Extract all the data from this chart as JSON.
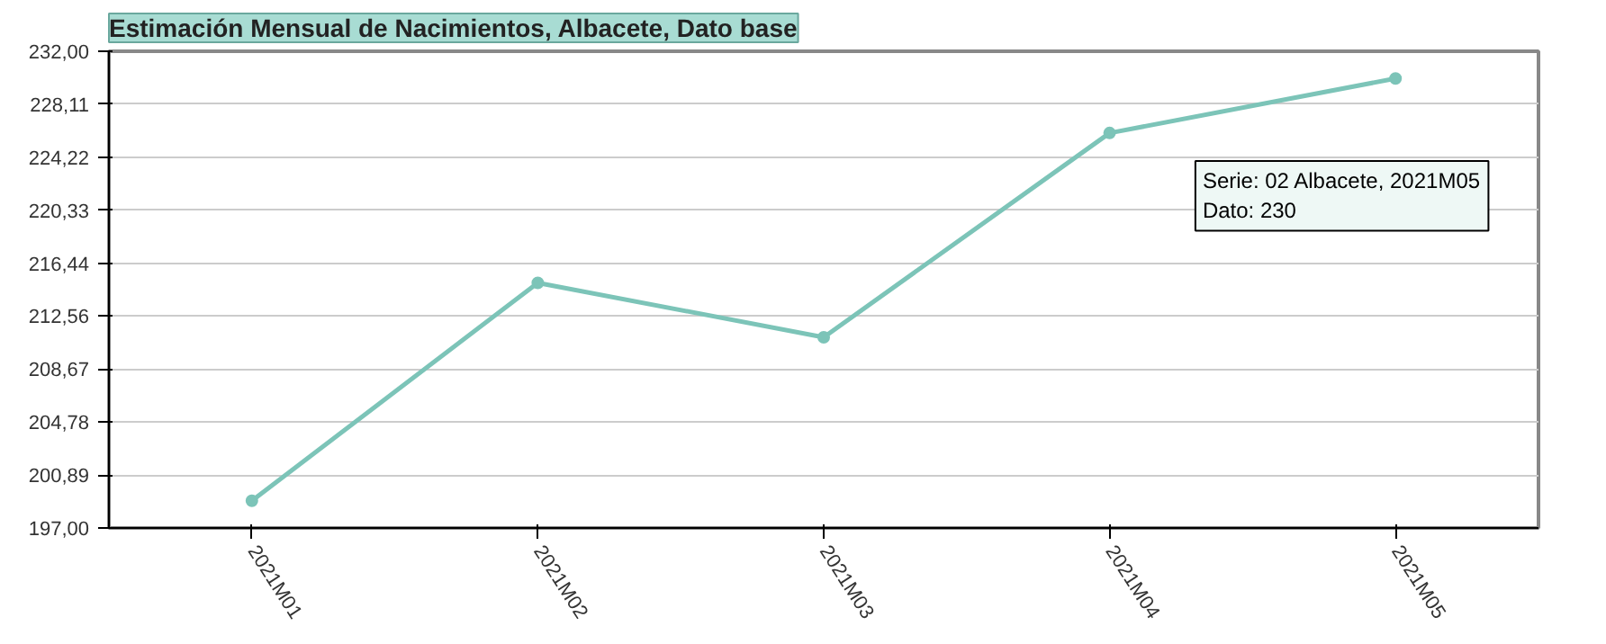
{
  "chart_data": {
    "type": "line",
    "title": "Estimación Mensual de Nacimientos, Albacete, Dato base",
    "categories": [
      "2021M01",
      "2021M02",
      "2021M03",
      "2021M04",
      "2021M05"
    ],
    "series": [
      {
        "color": "#7cc4b8",
        "values": [
          199,
          215,
          211,
          226,
          230
        ]
      }
    ],
    "ylim": [
      197,
      232
    ],
    "yticks": [
      {
        "value": 197,
        "label": "197,00"
      },
      {
        "value": 200.89,
        "label": "200,89"
      },
      {
        "value": 204.78,
        "label": "204,78"
      },
      {
        "value": 208.67,
        "label": "208,67"
      },
      {
        "value": 212.56,
        "label": "212,56"
      },
      {
        "value": 216.44,
        "label": "216,44"
      },
      {
        "value": 220.33,
        "label": "220,33"
      },
      {
        "value": 224.22,
        "label": "224,22"
      },
      {
        "value": 228.11,
        "label": "228,11"
      },
      {
        "value": 232,
        "label": "232,00"
      }
    ],
    "grid": "y",
    "marker": "circle",
    "line_style": "solid",
    "annotations": [
      "Serie: 02 Albacete, 2021M05\nDato: 230"
    ]
  }
}
